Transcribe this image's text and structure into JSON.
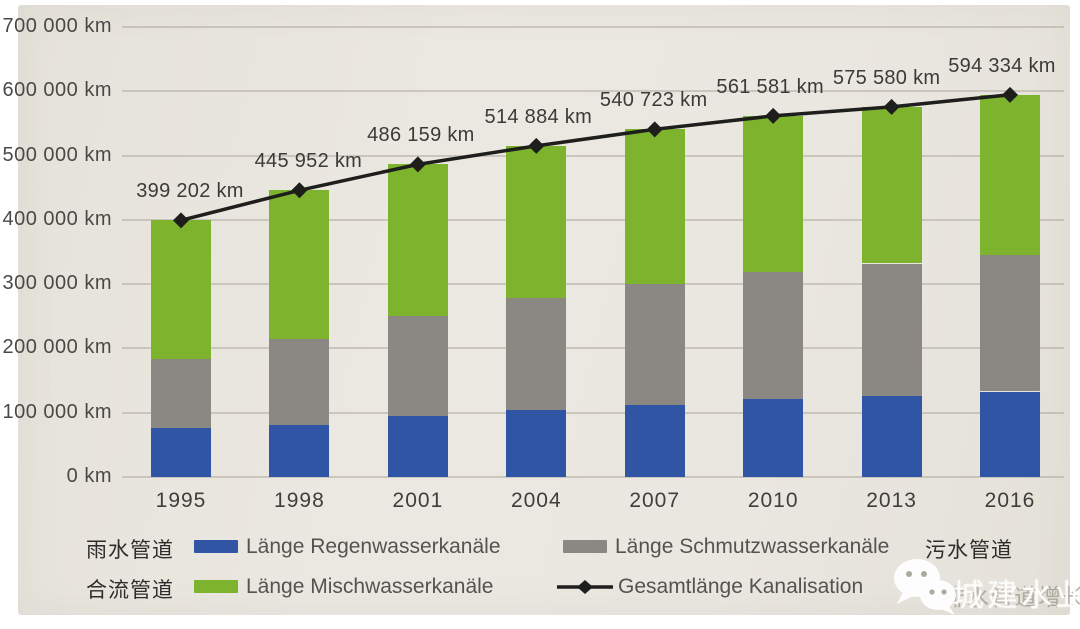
{
  "chart_data": {
    "type": "bar",
    "subtype": "stacked-bars-with-total-line",
    "unit": "km",
    "categories": [
      "1995",
      "1998",
      "2001",
      "2004",
      "2007",
      "2010",
      "2013",
      "2016"
    ],
    "series": [
      {
        "key": "regenwasser",
        "name": "Länge Regenwasserkanäle",
        "color": "#2f55a4",
        "values": [
          76000,
          81000,
          95000,
          104000,
          112000,
          121000,
          126000,
          133000
        ]
      },
      {
        "key": "schmutzwasser",
        "name": "Länge Schmutzwasserkanäle",
        "color": "#8b8883",
        "values": [
          108000,
          133000,
          156000,
          174000,
          188000,
          198000,
          206000,
          212000
        ]
      },
      {
        "key": "mischwasser",
        "name": "Länge Mischwasserkanäle",
        "color": "#7db32d",
        "values": [
          215202,
          231952,
          235159,
          236884,
          240723,
          242581,
          243580,
          249334
        ]
      }
    ],
    "line": {
      "name": "Gesamtlänge Kanalisation",
      "color": "#1e1e1c",
      "values": [
        399202,
        445952,
        486159,
        514884,
        540723,
        561581,
        575580,
        594334
      ],
      "labels": [
        "399 202 km",
        "445 952 km",
        "486 159 km",
        "514 884 km",
        "540 723 km",
        "561 581 km",
        "575 580 km",
        "594 334 km"
      ]
    },
    "y_ticks": [
      {
        "value": 0,
        "label": "0 km"
      },
      {
        "value": 100000,
        "label": "100 000 km"
      },
      {
        "value": 200000,
        "label": "200 000 km"
      },
      {
        "value": 300000,
        "label": "300 000 km"
      },
      {
        "value": 400000,
        "label": "400 000 km"
      },
      {
        "value": 500000,
        "label": "500 000 km"
      },
      {
        "value": 600000,
        "label": "600 000 km"
      },
      {
        "value": 700000,
        "label": "700 000 km"
      }
    ],
    "ylim": [
      0,
      700000
    ],
    "grid": true,
    "legend_position": "bottom"
  },
  "legend": {
    "rain_cn": "雨水管道",
    "rain": "Länge Regenwasserkanäle",
    "sewage": "Länge Schmutzwasserkanäle",
    "sewage_cn": "污水管道",
    "combined_cn": "合流管道",
    "combined": "Länge Mischwasserkanäle",
    "total": "Gesamtlänge Kanalisation"
  },
  "watermark": {
    "brand": "城建水业",
    "underlay_text": "排水管道增长"
  },
  "colors": {
    "rain_blue": "#2f55a4",
    "sewage_gray": "#8b8883",
    "combined_green": "#7db32d",
    "total_line": "#1e1e1c",
    "photo_background": "#eae7e0"
  }
}
